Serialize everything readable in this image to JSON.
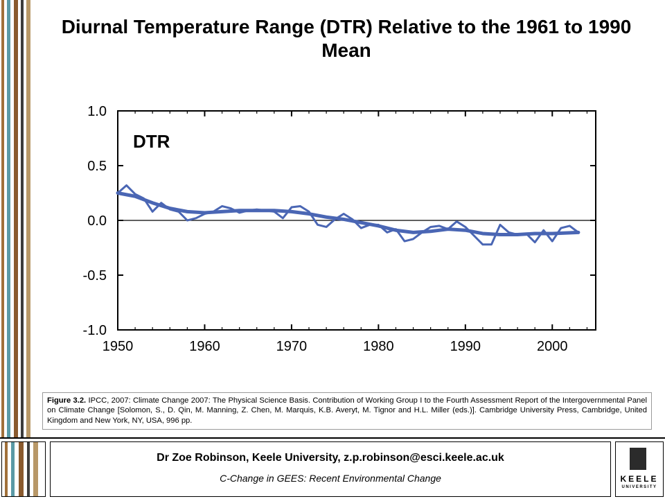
{
  "slide": {
    "title": "Diurnal Temperature Range (DTR) Relative to the 1961 to 1990 Mean",
    "caption_lead": "Figure 3.2.",
    "caption_body": " IPCC, 2007: Climate Change 2007: The Physical Science Basis. Contribution of Working Group I to the Fourth Assessment Report of the Intergovernmental Panel on Climate Change [Solomon, S., D. Qin, M. Manning, Z. Chen, M. Marquis, K.B. Averyt, M. Tignor and H.L. Miller (eds.)]. Cambridge University Press, Cambridge, United Kingdom and New York, NY, USA, 996 pp.",
    "footer_author": "Dr Zoe Robinson, Keele University, z.p.robinson@esci.keele.ac.uk",
    "footer_course": "C-Change in GEES: Recent Environmental Change",
    "logo_text": "KEELE",
    "logo_subtext": "UNIVERSITY",
    "stripe_colors": [
      "#a0703a",
      "#5a9aa6",
      "#8a5a2e",
      "#3c3c3c",
      "#b89868"
    ]
  },
  "chart_data": {
    "type": "line",
    "annotation": "DTR",
    "xlim": [
      1950,
      2005
    ],
    "ylim": [
      -1.0,
      1.0
    ],
    "xticks": [
      "1950",
      "1960",
      "1970",
      "1980",
      "1990",
      "2000"
    ],
    "yticks": [
      "1.0",
      "0.5",
      "0.0",
      "-0.5",
      "-1.0"
    ],
    "color": "#4a66b4",
    "series": [
      {
        "kind": "annual",
        "x": [
          1950,
          1951,
          1952,
          1953,
          1954,
          1955,
          1956,
          1957,
          1958,
          1959,
          1960,
          1961,
          1962,
          1963,
          1964,
          1965,
          1966,
          1967,
          1968,
          1969,
          1970,
          1971,
          1972,
          1973,
          1974,
          1975,
          1976,
          1977,
          1978,
          1979,
          1980,
          1981,
          1982,
          1983,
          1984,
          1985,
          1986,
          1987,
          1988,
          1989,
          1990,
          1991,
          1992,
          1993,
          1994,
          1995,
          1996,
          1997,
          1998,
          1999,
          2000,
          2001,
          2002,
          2003
        ],
        "y": [
          0.25,
          0.32,
          0.24,
          0.2,
          0.08,
          0.16,
          0.1,
          0.08,
          0.0,
          0.02,
          0.06,
          0.08,
          0.13,
          0.11,
          0.07,
          0.09,
          0.1,
          0.09,
          0.08,
          0.02,
          0.12,
          0.13,
          0.08,
          -0.04,
          -0.06,
          0.01,
          0.06,
          0.01,
          -0.07,
          -0.04,
          -0.04,
          -0.11,
          -0.08,
          -0.19,
          -0.17,
          -0.11,
          -0.06,
          -0.05,
          -0.08,
          -0.01,
          -0.06,
          -0.14,
          -0.22,
          -0.22,
          -0.04,
          -0.11,
          -0.13,
          -0.12,
          -0.2,
          -0.09,
          -0.19,
          -0.07,
          -0.05,
          -0.11
        ]
      },
      {
        "kind": "smoothed",
        "x": [
          1950,
          1952,
          1954,
          1956,
          1958,
          1960,
          1962,
          1964,
          1966,
          1968,
          1970,
          1972,
          1974,
          1976,
          1978,
          1980,
          1982,
          1984,
          1986,
          1988,
          1990,
          1992,
          1994,
          1996,
          1998,
          2000,
          2003
        ],
        "y": [
          0.25,
          0.22,
          0.16,
          0.11,
          0.08,
          0.07,
          0.08,
          0.09,
          0.09,
          0.09,
          0.08,
          0.06,
          0.03,
          0.01,
          -0.02,
          -0.05,
          -0.09,
          -0.11,
          -0.1,
          -0.08,
          -0.09,
          -0.12,
          -0.13,
          -0.13,
          -0.12,
          -0.12,
          -0.11
        ]
      }
    ]
  }
}
